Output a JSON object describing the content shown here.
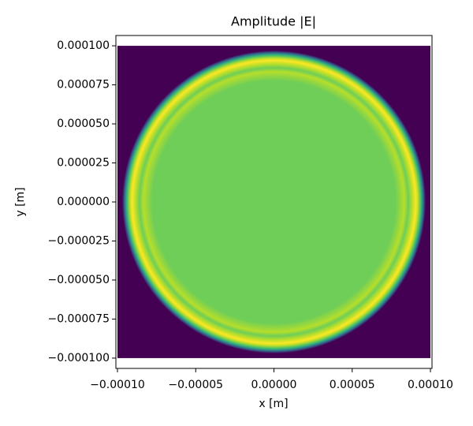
{
  "chart_data": {
    "type": "image",
    "title": "Amplitude |E|",
    "x_label": "x [m]",
    "y_label": "y [m]",
    "colormap": [
      "#440154",
      "#31688e",
      "#35b779",
      "#6ece58",
      "#b5de2b",
      "#fde725"
    ],
    "extent": [
      -0.0001,
      0.0001,
      -0.0001,
      0.0001
    ],
    "xlim": [
      -0.000101,
      0.000101
    ],
    "ylim": [
      -0.0001066,
      0.0001066
    ],
    "xticks": [
      {
        "value": -0.0001,
        "label": "−0.00010"
      },
      {
        "value": -5e-05,
        "label": "−0.00005"
      },
      {
        "value": 0,
        "label": "0.00000"
      },
      {
        "value": 5e-05,
        "label": "0.00005"
      },
      {
        "value": 0.0001,
        "label": "0.00010"
      }
    ],
    "yticks": [
      {
        "value": -0.0001,
        "label": "−0.000100"
      },
      {
        "value": -7.5e-05,
        "label": "−0.000075"
      },
      {
        "value": -5e-05,
        "label": "−0.000050"
      },
      {
        "value": -2.5e-05,
        "label": "−0.000025"
      },
      {
        "value": 0,
        "label": "0.000000"
      },
      {
        "value": 2.5e-05,
        "label": "0.000025"
      },
      {
        "value": 5e-05,
        "label": "0.000050"
      },
      {
        "value": 7.5e-05,
        "label": "0.000075"
      },
      {
        "value": 0.0001,
        "label": "0.000100"
      }
    ]
  }
}
